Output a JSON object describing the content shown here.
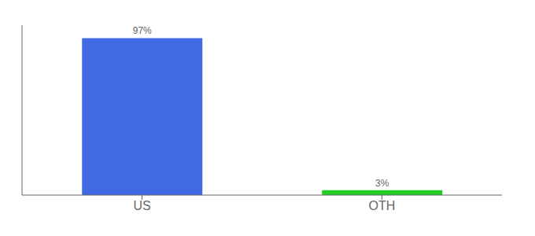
{
  "chart_data": {
    "type": "bar",
    "categories": [
      "US",
      "OTH"
    ],
    "values": [
      97,
      3
    ],
    "value_labels": [
      "97%",
      "3%"
    ],
    "colors": [
      "#4169e1",
      "#22cc22"
    ],
    "ylim": [
      0,
      105
    ],
    "data_labels": true,
    "tick_labels": "x"
  }
}
